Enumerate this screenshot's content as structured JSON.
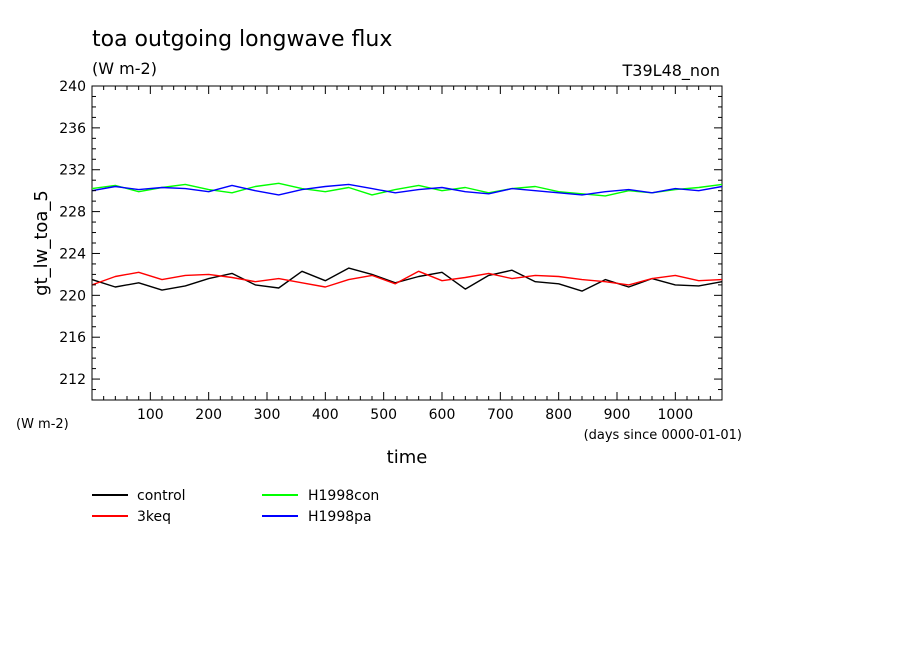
{
  "chart_data": {
    "type": "line",
    "title": "toa outgoing longwave flux",
    "subtitle": "(W m-2)",
    "run_label": "T39L48_non",
    "xlabel": "time",
    "xunits": "(days since 0000-01-01)",
    "ylabel": "gt_lw_toa_5",
    "yunits": "(W m-2)",
    "xlim": [
      0,
      1080
    ],
    "ylim": [
      210,
      240
    ],
    "xticks": [
      100,
      200,
      300,
      400,
      500,
      600,
      700,
      800,
      900,
      1000
    ],
    "yticks": [
      212,
      216,
      220,
      224,
      228,
      232,
      236,
      240
    ],
    "grid": false,
    "legend_position": "bottom-left",
    "series": [
      {
        "name": "control",
        "color": "#000000",
        "x": [
          0,
          40,
          80,
          120,
          160,
          200,
          240,
          280,
          320,
          360,
          400,
          440,
          480,
          520,
          560,
          600,
          640,
          680,
          720,
          760,
          800,
          840,
          880,
          920,
          960,
          1000,
          1040,
          1080
        ],
        "y": [
          221.5,
          220.8,
          221.2,
          220.5,
          220.9,
          221.6,
          222.1,
          221.0,
          220.7,
          222.3,
          221.4,
          222.6,
          222.0,
          221.2,
          221.8,
          222.2,
          220.6,
          221.9,
          222.4,
          221.3,
          221.1,
          220.4,
          221.5,
          220.8,
          221.6,
          221.0,
          220.9,
          221.3
        ]
      },
      {
        "name": "3keq",
        "color": "#ff0000",
        "x": [
          0,
          40,
          80,
          120,
          160,
          200,
          240,
          280,
          320,
          360,
          400,
          440,
          480,
          520,
          560,
          600,
          640,
          680,
          720,
          760,
          800,
          840,
          880,
          920,
          960,
          1000,
          1040,
          1080
        ],
        "y": [
          221.0,
          221.8,
          222.2,
          221.5,
          221.9,
          222.0,
          221.7,
          221.3,
          221.6,
          221.2,
          220.8,
          221.5,
          221.9,
          221.1,
          222.3,
          221.4,
          221.7,
          222.1,
          221.6,
          221.9,
          221.8,
          221.5,
          221.3,
          221.0,
          221.6,
          221.9,
          221.4,
          221.5
        ]
      },
      {
        "name": "H1998con",
        "color": "#00ff00",
        "x": [
          0,
          40,
          80,
          120,
          160,
          200,
          240,
          280,
          320,
          360,
          400,
          440,
          480,
          520,
          560,
          600,
          640,
          680,
          720,
          760,
          800,
          840,
          880,
          920,
          960,
          1000,
          1040,
          1080
        ],
        "y": [
          230.2,
          230.5,
          229.9,
          230.3,
          230.6,
          230.1,
          229.8,
          230.4,
          230.7,
          230.2,
          229.9,
          230.3,
          229.6,
          230.1,
          230.5,
          230.0,
          230.3,
          229.8,
          230.2,
          230.4,
          229.9,
          229.7,
          229.5,
          230.0,
          229.8,
          230.1,
          230.3,
          230.6
        ]
      },
      {
        "name": "H1998pa",
        "color": "#0000ff",
        "x": [
          0,
          40,
          80,
          120,
          160,
          200,
          240,
          280,
          320,
          360,
          400,
          440,
          480,
          520,
          560,
          600,
          640,
          680,
          720,
          760,
          800,
          840,
          880,
          920,
          960,
          1000,
          1040,
          1080
        ],
        "y": [
          230.0,
          230.4,
          230.1,
          230.3,
          230.2,
          229.9,
          230.5,
          230.0,
          229.6,
          230.1,
          230.4,
          230.6,
          230.2,
          229.8,
          230.1,
          230.3,
          229.9,
          229.7,
          230.2,
          230.0,
          229.8,
          229.6,
          229.9,
          230.1,
          229.8,
          230.2,
          230.0,
          230.4
        ]
      }
    ]
  }
}
